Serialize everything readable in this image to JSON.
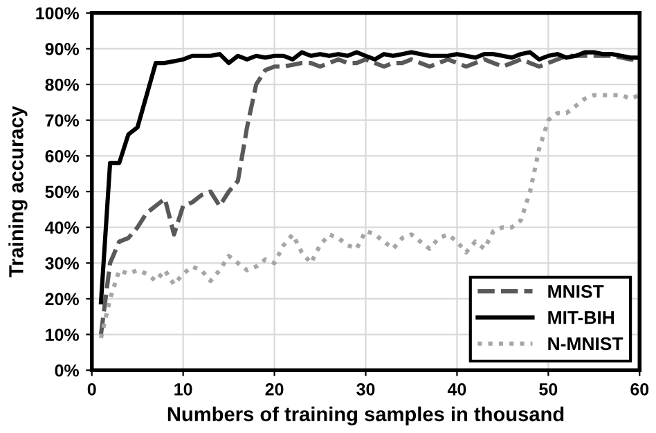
{
  "chart_data": {
    "type": "line",
    "xlabel": "Numbers of training samples in thousand",
    "ylabel": "Training accuracy",
    "x": [
      1,
      2,
      3,
      4,
      5,
      6,
      7,
      8,
      9,
      10,
      11,
      12,
      13,
      14,
      15,
      16,
      17,
      18,
      19,
      20,
      21,
      22,
      23,
      24,
      25,
      26,
      27,
      28,
      29,
      30,
      31,
      32,
      33,
      34,
      35,
      36,
      37,
      38,
      39,
      40,
      41,
      42,
      43,
      44,
      45,
      46,
      47,
      48,
      49,
      50,
      51,
      52,
      53,
      54,
      55,
      56,
      57,
      58,
      59,
      60
    ],
    "series": [
      {
        "name": "MNIST",
        "color": "#595959",
        "line_style": "dashed",
        "values": [
          10,
          30,
          36,
          37,
          40,
          44,
          46,
          48,
          38,
          46,
          47,
          49,
          50,
          46,
          50,
          53,
          68,
          80,
          84,
          85,
          85,
          85.5,
          86,
          86,
          85,
          86,
          87,
          86,
          86,
          87,
          86,
          85,
          86,
          86,
          87,
          86,
          85,
          86,
          87,
          86,
          85,
          86,
          87,
          86,
          85,
          86,
          87,
          86,
          85,
          86,
          87,
          88,
          88,
          88,
          88,
          88,
          88,
          87.5,
          87,
          87
        ]
      },
      {
        "name": "MIT-BIH",
        "color": "#000000",
        "line_style": "solid",
        "values": [
          19,
          58,
          58,
          66,
          68,
          77,
          86,
          86,
          86.5,
          87,
          88,
          88,
          88,
          88.5,
          86,
          88,
          87,
          88,
          87.5,
          88,
          88,
          87,
          89,
          88,
          88.5,
          88,
          88.5,
          88,
          89,
          88,
          87,
          88.5,
          88,
          88.5,
          89,
          88.5,
          88,
          88,
          88,
          88.5,
          88,
          87.5,
          88.5,
          88.5,
          88,
          87.5,
          88.5,
          89,
          87,
          88,
          88.5,
          87.5,
          88,
          89,
          89,
          88.5,
          88.5,
          88,
          87.5,
          87.5
        ]
      },
      {
        "name": "N-MNIST",
        "color": "#a6a6a6",
        "line_style": "dotted",
        "values": [
          9,
          20,
          28,
          27,
          28,
          27,
          25,
          28,
          24,
          27,
          29,
          28,
          25,
          28,
          32,
          30,
          28,
          29,
          31,
          30,
          35,
          38,
          33,
          30,
          35,
          38,
          37,
          35,
          34,
          39,
          38,
          36,
          34,
          37,
          38,
          36,
          34,
          37,
          38,
          36,
          33,
          36,
          34,
          39,
          40,
          40,
          42,
          50,
          62,
          70,
          72,
          72,
          74,
          76,
          77,
          77,
          77,
          77,
          76,
          77
        ]
      }
    ],
    "xlim": [
      0,
      60
    ],
    "xticks": [
      0,
      10,
      20,
      30,
      40,
      50,
      60
    ],
    "ylim": [
      0,
      100
    ],
    "yticks": [
      {
        "value": 0,
        "label": "0%"
      },
      {
        "value": 10,
        "label": "10%"
      },
      {
        "value": 20,
        "label": "20%"
      },
      {
        "value": 30,
        "label": "30%"
      },
      {
        "value": 40,
        "label": "40%"
      },
      {
        "value": 50,
        "label": "50%"
      },
      {
        "value": 60,
        "label": "60%"
      },
      {
        "value": 70,
        "label": "70%"
      },
      {
        "value": 80,
        "label": "80%"
      },
      {
        "value": 90,
        "label": "90%"
      },
      {
        "value": 100,
        "label": "100%"
      }
    ],
    "grid": true,
    "legend": "bottom right"
  }
}
